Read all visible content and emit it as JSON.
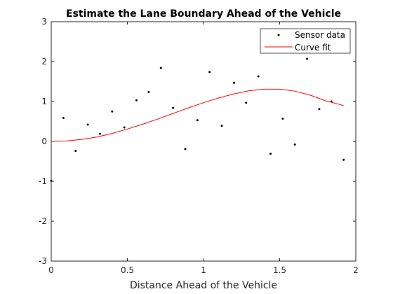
{
  "chart_data": {
    "type": "scatter",
    "title": "Estimate the Lane Boundary Ahead of the Vehicle",
    "xlabel": "Distance Ahead of the Vehicle",
    "ylabel": "",
    "xlim": [
      0,
      2
    ],
    "ylim": [
      -3,
      3
    ],
    "xticks": [
      "0",
      "0.5",
      "1",
      "1.5",
      "2"
    ],
    "yticks": [
      "-3",
      "-2",
      "-1",
      "0",
      "1",
      "2",
      "3"
    ],
    "grid": false,
    "legend_position": "top-right",
    "series": [
      {
        "name": "Sensor data",
        "kind": "markers",
        "color": "#000000",
        "x": [
          0,
          0.08,
          0.16,
          0.24,
          0.32,
          0.4,
          0.48,
          0.56,
          0.64,
          0.72,
          0.8,
          0.88,
          0.96,
          1.04,
          1.12,
          1.2,
          1.28,
          1.36,
          1.44,
          1.52,
          1.6,
          1.68,
          1.76,
          1.84,
          1.92
        ],
        "y": [
          -0.99,
          0.59,
          -0.24,
          0.42,
          0.19,
          0.75,
          0.35,
          1.03,
          1.24,
          1.84,
          0.84,
          -0.19,
          0.53,
          1.74,
          0.39,
          1.47,
          0.97,
          1.63,
          -0.31,
          0.57,
          -0.08,
          2.07,
          0.81,
          1.0,
          -0.46
        ]
      },
      {
        "name": "Curve fit",
        "kind": "line",
        "color": "#ff0000",
        "x": [
          0,
          0.1,
          0.2,
          0.3,
          0.4,
          0.5,
          0.6,
          0.7,
          0.8,
          0.9,
          1.0,
          1.1,
          1.2,
          1.3,
          1.4,
          1.5,
          1.6,
          1.7,
          1.8,
          1.9,
          1.92
        ],
        "y": [
          0,
          0.01,
          0.05,
          0.11,
          0.2,
          0.31,
          0.43,
          0.56,
          0.7,
          0.84,
          0.97,
          1.09,
          1.19,
          1.27,
          1.31,
          1.31,
          1.26,
          1.16,
          1.02,
          0.92,
          0.89
        ]
      }
    ]
  }
}
